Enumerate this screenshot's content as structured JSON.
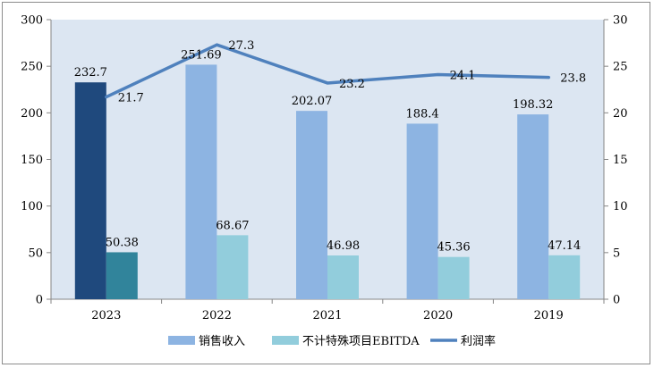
{
  "chart_data": {
    "type": "bar",
    "title": "",
    "categories": [
      "2023",
      "2022",
      "2021",
      "2020",
      "2019"
    ],
    "series": [
      {
        "name": "销售收入",
        "kind": "bar",
        "axis": "left",
        "color": "#8DB4E2",
        "values": [
          232.7,
          251.69,
          202.07,
          188.4,
          198.32
        ],
        "labels": [
          "232.7",
          "251.69",
          "202.07",
          "188.4",
          "198.32"
        ]
      },
      {
        "name": "不计特殊项目EBITDA",
        "kind": "bar",
        "axis": "left",
        "color": "#92CDDC",
        "values": [
          50.38,
          68.67,
          46.98,
          45.36,
          47.14
        ],
        "labels": [
          "50.38",
          "68.67",
          "46.98",
          "45.36",
          "47.14"
        ]
      },
      {
        "name": "利润率",
        "kind": "line",
        "axis": "right",
        "color": "#4F81BD",
        "values": [
          21.7,
          27.3,
          23.2,
          24.1,
          23.8
        ],
        "labels": [
          "21.7",
          "27.3",
          "23.2",
          "24.1",
          "23.8"
        ]
      }
    ],
    "highlight_colors": {
      "销售收入": "#1F497D",
      "不计特殊项目EBITDA": "#31849B"
    },
    "highlight_category": "2023",
    "y_left": {
      "min": 0,
      "max": 300,
      "step": 50,
      "ticks": [
        "0",
        "50",
        "100",
        "150",
        "200",
        "250",
        "300"
      ]
    },
    "y_right": {
      "min": 0,
      "max": 30,
      "step": 5,
      "ticks": [
        "0",
        "5",
        "10",
        "15",
        "20",
        "25",
        "30"
      ]
    },
    "plot_background": "#DCE6F2",
    "grid": false,
    "legend_position": "bottom",
    "legend": [
      "销售收入",
      "不计特殊项目EBITDA",
      "利润率"
    ]
  }
}
